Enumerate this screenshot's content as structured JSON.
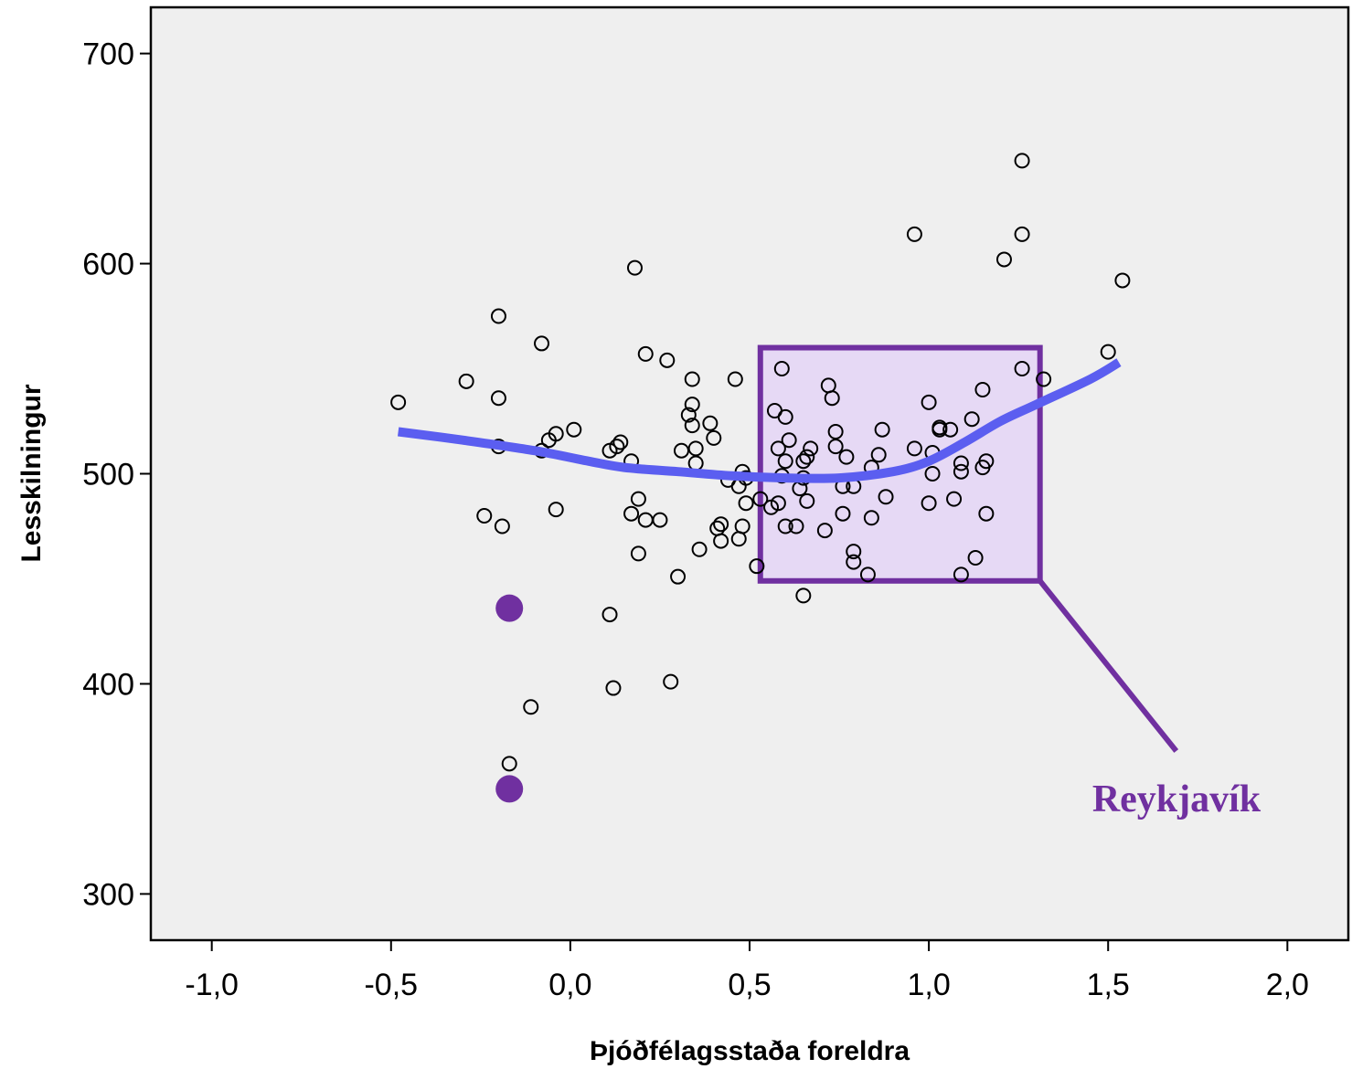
{
  "chart_data": {
    "type": "scatter",
    "xlabel": "Þjóðfélagsstaða foreldra",
    "ylabel": "Lesskilningur",
    "xlim": [
      -1.17,
      2.17
    ],
    "ylim": [
      278,
      722
    ],
    "x_ticks": [
      {
        "value": -1.0,
        "label": "-1,0"
      },
      {
        "value": -0.5,
        "label": "-0,5"
      },
      {
        "value": 0.0,
        "label": "0,0"
      },
      {
        "value": 0.5,
        "label": "0,5"
      },
      {
        "value": 1.0,
        "label": "1,0"
      },
      {
        "value": 1.5,
        "label": "1,5"
      },
      {
        "value": 2.0,
        "label": "2,0"
      }
    ],
    "y_ticks": [
      {
        "value": 300,
        "label": "300"
      },
      {
        "value": 400,
        "label": "400"
      },
      {
        "value": 500,
        "label": "500"
      },
      {
        "value": 600,
        "label": "600"
      },
      {
        "value": 700,
        "label": "700"
      }
    ],
    "grid": false,
    "colors": {
      "plot_background": "#efefef",
      "trend_line": "#5b5ef0",
      "highlight": "#7030a0",
      "highlight_fill": "#e6d9f5",
      "points": "#000000"
    },
    "points": [
      [
        -0.48,
        534
      ],
      [
        -0.29,
        544
      ],
      [
        -0.2,
        575
      ],
      [
        -0.2,
        536
      ],
      [
        -0.2,
        513
      ],
      [
        -0.08,
        562
      ],
      [
        -0.08,
        511
      ],
      [
        -0.06,
        516
      ],
      [
        -0.04,
        519
      ],
      [
        0.01,
        521
      ],
      [
        -0.24,
        480
      ],
      [
        -0.19,
        475
      ],
      [
        -0.04,
        483
      ],
      [
        0.11,
        511
      ],
      [
        0.13,
        513
      ],
      [
        0.14,
        515
      ],
      [
        0.17,
        506
      ],
      [
        0.18,
        598
      ],
      [
        0.21,
        557
      ],
      [
        0.27,
        554
      ],
      [
        0.19,
        488
      ],
      [
        0.17,
        481
      ],
      [
        0.21,
        478
      ],
      [
        0.25,
        478
      ],
      [
        0.19,
        462
      ],
      [
        0.3,
        451
      ],
      [
        0.31,
        511
      ],
      [
        0.33,
        528
      ],
      [
        0.34,
        545
      ],
      [
        0.34,
        533
      ],
      [
        0.34,
        523
      ],
      [
        0.35,
        512
      ],
      [
        0.35,
        505
      ],
      [
        0.39,
        524
      ],
      [
        0.4,
        517
      ],
      [
        0.36,
        464
      ],
      [
        0.41,
        474
      ],
      [
        0.42,
        476
      ],
      [
        0.42,
        468
      ],
      [
        0.47,
        469
      ],
      [
        0.48,
        475
      ],
      [
        0.46,
        545
      ],
      [
        0.48,
        501
      ],
      [
        0.49,
        498
      ],
      [
        0.47,
        494
      ],
      [
        0.49,
        486
      ],
      [
        0.44,
        497
      ],
      [
        0.52,
        456
      ],
      [
        0.53,
        488
      ],
      [
        0.11,
        433
      ],
      [
        0.12,
        398
      ],
      [
        0.28,
        401
      ],
      [
        -0.11,
        389
      ],
      [
        -0.17,
        362
      ],
      [
        0.59,
        550
      ],
      [
        0.57,
        530
      ],
      [
        0.6,
        527
      ],
      [
        0.61,
        516
      ],
      [
        0.58,
        512
      ],
      [
        0.6,
        506
      ],
      [
        0.59,
        499
      ],
      [
        0.58,
        486
      ],
      [
        0.56,
        484
      ],
      [
        0.6,
        475
      ],
      [
        0.63,
        475
      ],
      [
        0.64,
        493
      ],
      [
        0.65,
        498
      ],
      [
        0.65,
        506
      ],
      [
        0.66,
        508
      ],
      [
        0.67,
        512
      ],
      [
        0.66,
        487
      ],
      [
        0.72,
        542
      ],
      [
        0.73,
        536
      ],
      [
        0.74,
        520
      ],
      [
        0.74,
        513
      ],
      [
        0.77,
        508
      ],
      [
        0.76,
        494
      ],
      [
        0.79,
        494
      ],
      [
        0.76,
        481
      ],
      [
        0.71,
        473
      ],
      [
        0.79,
        463
      ],
      [
        0.79,
        458
      ],
      [
        0.83,
        452
      ],
      [
        0.84,
        479
      ],
      [
        0.84,
        503
      ],
      [
        0.86,
        509
      ],
      [
        0.87,
        521
      ],
      [
        0.88,
        489
      ],
      [
        0.65,
        442
      ],
      [
        0.96,
        614
      ],
      [
        0.96,
        512
      ],
      [
        1.0,
        534
      ],
      [
        1.01,
        510
      ],
      [
        1.01,
        500
      ],
      [
        1.0,
        486
      ],
      [
        1.03,
        522
      ],
      [
        1.03,
        521
      ],
      [
        1.06,
        521
      ],
      [
        1.07,
        488
      ],
      [
        1.09,
        505
      ],
      [
        1.09,
        501
      ],
      [
        1.09,
        452
      ],
      [
        1.12,
        526
      ],
      [
        1.13,
        460
      ],
      [
        1.15,
        540
      ],
      [
        1.15,
        503
      ],
      [
        1.16,
        506
      ],
      [
        1.16,
        481
      ],
      [
        1.21,
        602
      ],
      [
        1.26,
        649
      ],
      [
        1.26,
        614
      ],
      [
        1.26,
        550
      ],
      [
        1.32,
        545
      ],
      [
        1.5,
        558
      ],
      [
        1.54,
        592
      ]
    ],
    "highlighted_points": [
      [
        -0.17,
        436
      ],
      [
        -0.17,
        350
      ]
    ],
    "trend_line": [
      [
        -0.48,
        520
      ],
      [
        -0.3,
        516
      ],
      [
        -0.1,
        511
      ],
      [
        0.05,
        506
      ],
      [
        0.15,
        503
      ],
      [
        0.3,
        501
      ],
      [
        0.45,
        499
      ],
      [
        0.6,
        498
      ],
      [
        0.75,
        498
      ],
      [
        0.9,
        501
      ],
      [
        1.0,
        506
      ],
      [
        1.1,
        515
      ],
      [
        1.2,
        525
      ],
      [
        1.3,
        533
      ],
      [
        1.45,
        545
      ],
      [
        1.53,
        553
      ]
    ],
    "highlight_region": {
      "x": [
        0.53,
        1.31
      ],
      "y": [
        449,
        560
      ]
    },
    "callout_line": [
      [
        1.31,
        449
      ],
      [
        1.69,
        368
      ]
    ],
    "annotation": "Reykjavík"
  }
}
